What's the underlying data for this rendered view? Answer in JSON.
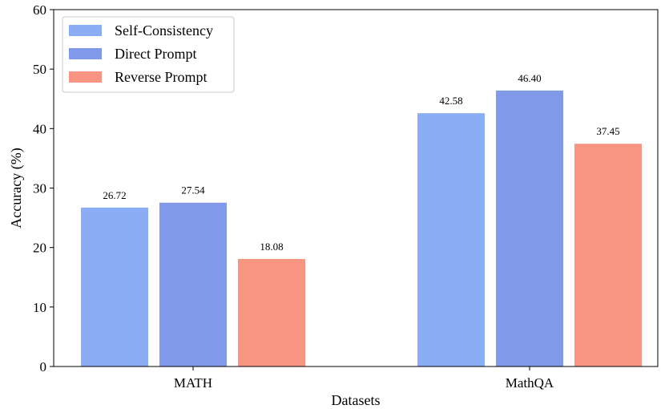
{
  "chart_data": {
    "type": "bar",
    "categories": [
      "MATH",
      "MathQA"
    ],
    "series": [
      {
        "name": "Self-Consistency",
        "values": [
          26.72,
          42.58
        ],
        "labels": [
          "26.72",
          "42.58"
        ],
        "color": "#8aadf5"
      },
      {
        "name": "Direct Prompt",
        "values": [
          27.54,
          46.4
        ],
        "labels": [
          "27.54",
          "46.40"
        ],
        "color": "#8099e8"
      },
      {
        "name": "Reverse Prompt",
        "values": [
          18.08,
          37.45
        ],
        "labels": [
          "18.08",
          "37.45"
        ],
        "color": "#f89482"
      }
    ],
    "xlabel": "Datasets",
    "ylabel": "Accuracy (%)",
    "ylim": [
      0,
      60
    ],
    "yticks": [
      0,
      10,
      20,
      30,
      40,
      50,
      60
    ],
    "grid": false,
    "legend_position": "top-left"
  }
}
